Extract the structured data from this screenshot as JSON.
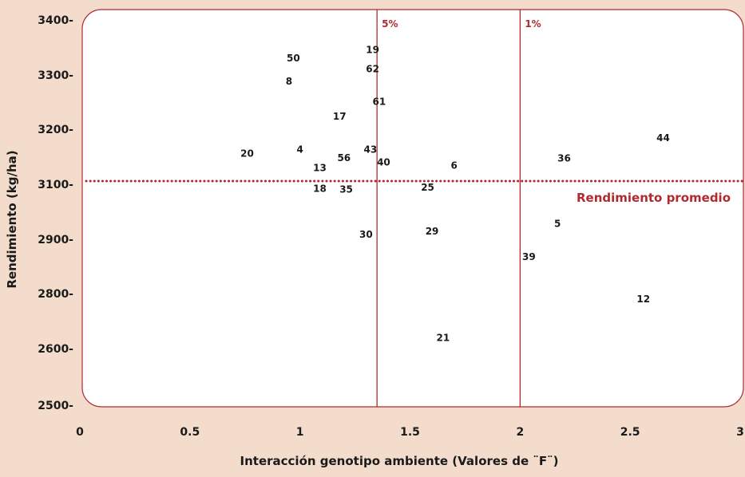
{
  "chart_data": {
    "type": "scatter",
    "xlabel": "Interacción genotipo ambiente (Valores de ¨F¨)",
    "ylabel": "Rendimiento (kg/ha)",
    "xlim": [
      0,
      3
    ],
    "ylim": [
      2500,
      3400
    ],
    "x_ticks": [
      "0",
      "0.5",
      "1",
      "1.5",
      "2",
      "2.5",
      "3"
    ],
    "x_tick_values": [
      0,
      0.5,
      1,
      1.5,
      2,
      2.5,
      3
    ],
    "y_ticks": [
      "2500-",
      "2600-",
      "2800-",
      "2900-",
      "3100-",
      "3200-",
      "3300-",
      "3400-"
    ],
    "y_tick_values": [
      2500,
      2600,
      2800,
      2900,
      3100,
      3200,
      3300,
      3400
    ],
    "grid": false,
    "reference_lines": {
      "mean": {
        "value": 3100,
        "label": "Rendimiento promedio"
      },
      "significance": [
        {
          "value": 1.35,
          "label": "5%"
        },
        {
          "value": 2.0,
          "label": "1%"
        }
      ]
    },
    "colors": {
      "reference": "#b02a2f",
      "background": "#f3dccb",
      "panel": "#ffffff"
    },
    "points": [
      {
        "label": "50",
        "x": 0.97,
        "y": 3325
      },
      {
        "label": "8",
        "x": 0.95,
        "y": 3282
      },
      {
        "label": "19",
        "x": 1.33,
        "y": 3340
      },
      {
        "label": "62",
        "x": 1.33,
        "y": 3305
      },
      {
        "label": "61",
        "x": 1.36,
        "y": 3245
      },
      {
        "label": "17",
        "x": 1.18,
        "y": 3218
      },
      {
        "label": "20",
        "x": 0.76,
        "y": 3150
      },
      {
        "label": "4",
        "x": 1.0,
        "y": 3157
      },
      {
        "label": "43",
        "x": 1.32,
        "y": 3157
      },
      {
        "label": "56",
        "x": 1.2,
        "y": 3142
      },
      {
        "label": "13",
        "x": 1.09,
        "y": 3124
      },
      {
        "label": "40",
        "x": 1.38,
        "y": 3134
      },
      {
        "label": "6",
        "x": 1.7,
        "y": 3128
      },
      {
        "label": "44",
        "x": 2.65,
        "y": 3178
      },
      {
        "label": "36",
        "x": 2.2,
        "y": 3141
      },
      {
        "label": "18",
        "x": 1.09,
        "y": 3072
      },
      {
        "label": "35",
        "x": 1.21,
        "y": 3069
      },
      {
        "label": "25",
        "x": 1.58,
        "y": 3077
      },
      {
        "label": "5",
        "x": 2.17,
        "y": 2945
      },
      {
        "label": "29",
        "x": 1.6,
        "y": 2918
      },
      {
        "label": "30",
        "x": 1.3,
        "y": 2906
      },
      {
        "label": "39",
        "x": 2.04,
        "y": 2862
      },
      {
        "label": "12",
        "x": 2.56,
        "y": 2768
      },
      {
        "label": "21",
        "x": 1.65,
        "y": 2627
      }
    ]
  }
}
